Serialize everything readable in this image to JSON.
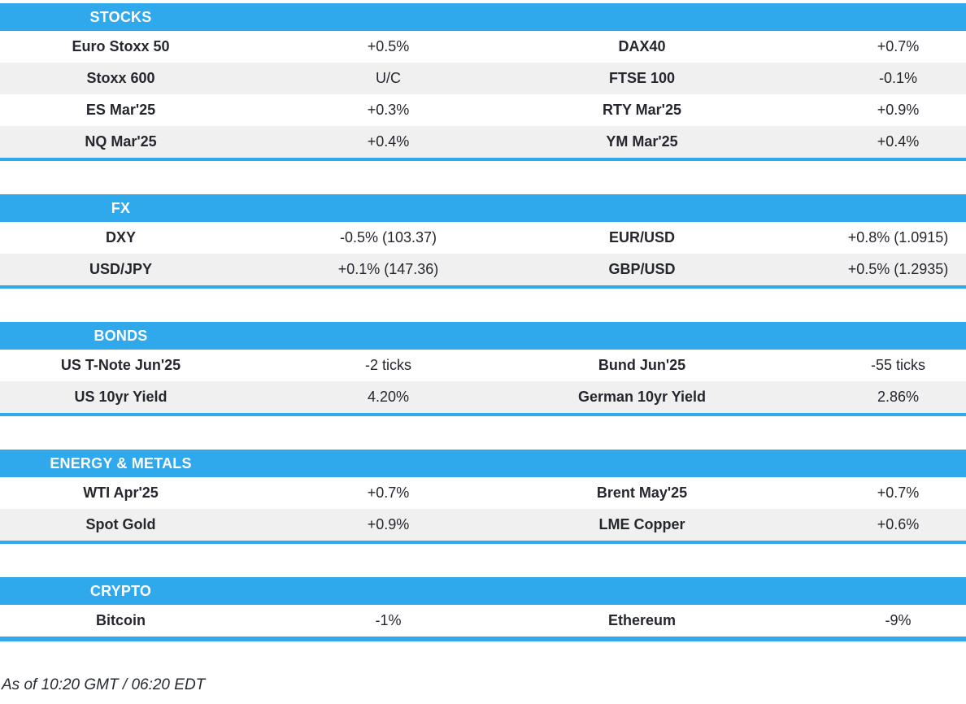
{
  "colors": {
    "accent": "#2fa8ec",
    "row_alt": "#f0f0f1",
    "text": "#25272e",
    "header_text": "#ffffff"
  },
  "sections": [
    {
      "title": "STOCKS",
      "rows": [
        {
          "cells": [
            "Euro Stoxx 50",
            "+0.5%",
            "DAX40",
            "+0.7%"
          ]
        },
        {
          "cells": [
            "Stoxx 600",
            "U/C",
            "FTSE 100",
            "-0.1%"
          ]
        },
        {
          "cells": [
            "ES Mar'25",
            "+0.3%",
            "RTY Mar'25",
            "+0.9%"
          ]
        },
        {
          "cells": [
            "NQ Mar'25",
            "+0.4%",
            "YM Mar'25",
            "+0.4%"
          ]
        }
      ]
    },
    {
      "title": "FX",
      "rows": [
        {
          "cells": [
            "DXY",
            "-0.5% (103.37)",
            "EUR/USD",
            "+0.8% (1.0915)"
          ]
        },
        {
          "cells": [
            "USD/JPY",
            "+0.1% (147.36)",
            "GBP/USD",
            "+0.5% (1.2935)"
          ]
        }
      ]
    },
    {
      "title": "BONDS",
      "rows": [
        {
          "cells": [
            "US T-Note Jun'25",
            "-2 ticks",
            "Bund Jun'25",
            "-55 ticks"
          ]
        },
        {
          "cells": [
            "US 10yr Yield",
            "4.20%",
            "German 10yr Yield",
            "2.86%"
          ]
        }
      ]
    },
    {
      "title": "ENERGY & METALS",
      "rows": [
        {
          "cells": [
            "WTI Apr'25",
            "+0.7%",
            "Brent May'25",
            "+0.7%"
          ]
        },
        {
          "cells": [
            "Spot Gold",
            "+0.9%",
            "LME Copper",
            "+0.6%"
          ]
        }
      ]
    },
    {
      "title": "CRYPTO",
      "rows": [
        {
          "cells": [
            "Bitcoin",
            "-1%",
            "Ethereum",
            "-9%"
          ]
        }
      ]
    }
  ],
  "footer": {
    "as_of": "As of 10:20 GMT / 06:20 EDT"
  }
}
